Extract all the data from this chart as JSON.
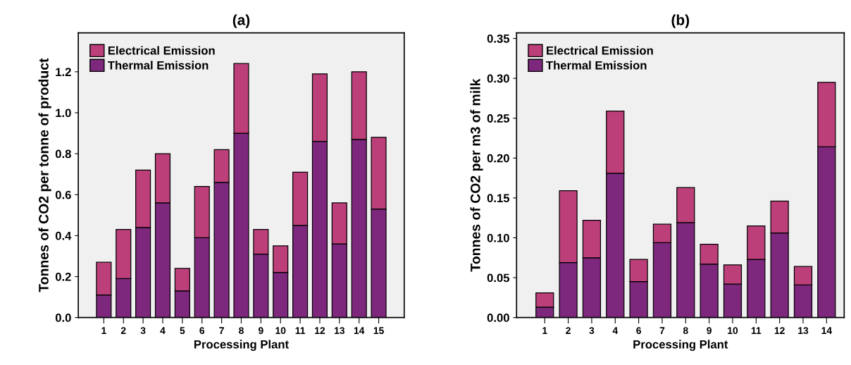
{
  "chart_data": [
    {
      "type": "bar",
      "title": "(a)",
      "xlabel": "Processing Plant",
      "ylabel": "Tonnes of CO2 per tonne of product",
      "stacked": true,
      "legend": "top left",
      "grid": false,
      "categories": [
        "1",
        "2",
        "3",
        "4",
        "5",
        "6",
        "7",
        "8",
        "9",
        "10",
        "11",
        "12",
        "13",
        "14",
        "15"
      ],
      "ylim": [
        0,
        1.39
      ],
      "yticks": [
        {
          "value": 0,
          "label": "0.0"
        },
        {
          "value": 0.2,
          "label": "0.2"
        },
        {
          "value": 0.4,
          "label": "0.4"
        },
        {
          "value": 0.6,
          "label": "0.6"
        },
        {
          "value": 0.8,
          "label": "0.8"
        },
        {
          "value": 1.0,
          "label": "1.0"
        },
        {
          "value": 1.2,
          "label": "1.2"
        }
      ],
      "series": [
        {
          "name": "Thermal Emission",
          "color": "#7d287d",
          "values": [
            0.11,
            0.19,
            0.44,
            0.56,
            0.13,
            0.39,
            0.66,
            0.9,
            0.31,
            0.22,
            0.45,
            0.86,
            0.36,
            0.87,
            0.53
          ]
        },
        {
          "name": "Electrical Emission",
          "color": "#bc3f7a",
          "values": [
            0.16,
            0.24,
            0.28,
            0.24,
            0.11,
            0.25,
            0.16,
            0.34,
            0.12,
            0.13,
            0.26,
            0.33,
            0.2,
            0.33,
            0.35
          ]
        }
      ]
    },
    {
      "type": "bar",
      "title": "(b)",
      "xlabel": "Processing Plant",
      "ylabel": "Tonnes of CO2 per m3 of milk",
      "stacked": true,
      "legend": "top left",
      "grid": false,
      "categories": [
        "1",
        "2",
        "3",
        "4",
        "6",
        "7",
        "8",
        "9",
        "10",
        "11",
        "12",
        "13",
        "14"
      ],
      "ylim": [
        0,
        0.357
      ],
      "yticks": [
        {
          "value": 0,
          "label": "0.00"
        },
        {
          "value": 0.05,
          "label": "0.05"
        },
        {
          "value": 0.1,
          "label": "0.10"
        },
        {
          "value": 0.15,
          "label": "0.15"
        },
        {
          "value": 0.2,
          "label": "0.20"
        },
        {
          "value": 0.25,
          "label": "0.25"
        },
        {
          "value": 0.3,
          "label": "0.30"
        },
        {
          "value": 0.35,
          "label": "0.35"
        }
      ],
      "series": [
        {
          "name": "Thermal Emission",
          "color": "#7d287d",
          "values": [
            0.013,
            0.069,
            0.075,
            0.181,
            0.045,
            0.094,
            0.119,
            0.067,
            0.042,
            0.073,
            0.106,
            0.041,
            0.214
          ]
        },
        {
          "name": "Electrical Emission",
          "color": "#bc3f7a",
          "values": [
            0.018,
            0.09,
            0.047,
            0.078,
            0.028,
            0.023,
            0.044,
            0.025,
            0.024,
            0.042,
            0.04,
            0.023,
            0.081
          ]
        }
      ]
    }
  ]
}
